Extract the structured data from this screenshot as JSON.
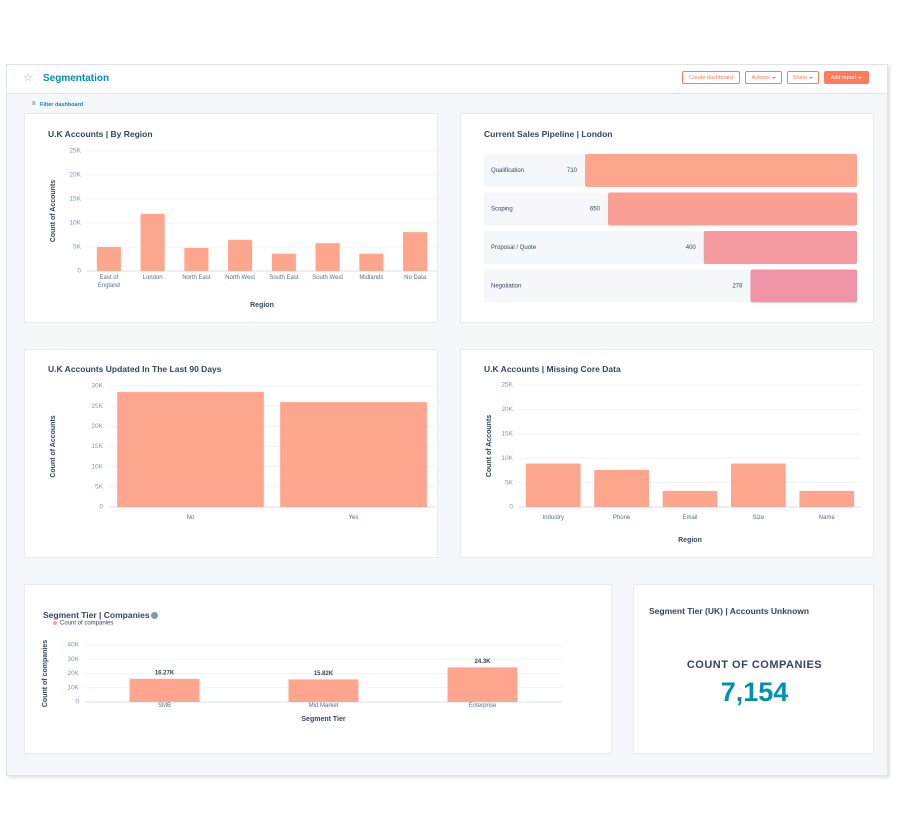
{
  "header": {
    "title": "Segmentation",
    "buttons": [
      "Create dashboard",
      "Actions",
      "Share",
      "Add report"
    ],
    "filter": "Filter dashboard"
  },
  "chart_data": [
    {
      "type": "bar",
      "title": "U.K Accounts | By Region",
      "categories": [
        "East of England",
        "London",
        "North East",
        "North West",
        "South East",
        "South West",
        "Midlands",
        "No Data"
      ],
      "values": [
        5000,
        11900,
        4800,
        6500,
        3600,
        5800,
        3600,
        8100
      ],
      "color": "#fea58e",
      "ylim": [
        0,
        25000
      ],
      "yticks": [
        0,
        {
          "value": 5000,
          "label": "5K"
        },
        {
          "value": 10000,
          "label": "10K"
        },
        {
          "value": 15000,
          "label": "15K"
        },
        {
          "value": 20000,
          "label": "20K"
        },
        {
          "value": 25000,
          "label": "25K"
        }
      ],
      "ylabel": "Count of Accounts",
      "xlabel": "Region",
      "grid": true
    },
    {
      "type": "funnel",
      "title": "Current Sales Pipeline | London",
      "categories": [
        "Qualification",
        "Scoping",
        "Proposal / Quote",
        "Negotiation"
      ],
      "values": [
        710,
        650,
        400,
        278
      ],
      "colors": [
        "#fea58e",
        "#fb9f95",
        "#f599a0",
        "#ef93a6"
      ]
    },
    {
      "type": "bar",
      "title": "U.K Accounts Updated In The Last 90 Days",
      "categories": [
        "No",
        "Yes"
      ],
      "values": [
        28500,
        26000
      ],
      "color": "#fea58e",
      "ylim": [
        0,
        30000
      ],
      "yticks": [
        0,
        {
          "value": 5000,
          "label": "5K"
        },
        {
          "value": 10000,
          "label": "10K"
        },
        {
          "value": 15000,
          "label": "15K"
        },
        {
          "value": 20000,
          "label": "20K"
        },
        {
          "value": 25000,
          "label": "25K"
        },
        {
          "value": 30000,
          "label": "30K"
        }
      ],
      "ylabel": "Count of Accounts",
      "grid": true
    },
    {
      "type": "bar",
      "title": "U.K Accounts | Missing Core Data",
      "categories": [
        "Industry",
        "Phone",
        "Email",
        "Size",
        "Name"
      ],
      "values": [
        8900,
        7600,
        3300,
        8900,
        3300
      ],
      "color": "#fea58e",
      "ylim": [
        0,
        25000
      ],
      "yticks": [
        0,
        {
          "value": 5000,
          "label": "5K"
        },
        {
          "value": 10000,
          "label": "10K"
        },
        {
          "value": 15000,
          "label": "15K"
        },
        {
          "value": 20000,
          "label": "20K"
        },
        {
          "value": 25000,
          "label": "25K"
        }
      ],
      "ylabel": "Count of Accounts",
      "xlabel": "Region",
      "grid": true
    },
    {
      "type": "bar",
      "title": "Segment Tier | Companies",
      "categories": [
        "SMB",
        "Mid Market",
        "Enterprise"
      ],
      "series": [
        {
          "name": "Count of companies",
          "color": "#fea58e",
          "values": [
            16270,
            15820,
            24300
          ],
          "value_labels": [
            "16.27K",
            "15.82K",
            "24.3K"
          ]
        }
      ],
      "ylim": [
        0,
        40000
      ],
      "yticks": [
        0,
        {
          "value": 10000,
          "label": "10K"
        },
        {
          "value": 20000,
          "label": "20K"
        },
        {
          "value": 30000,
          "label": "30K"
        },
        {
          "value": 40000,
          "label": "40K"
        }
      ],
      "ylabel": "Count of companies",
      "xlabel": "Segment Tier",
      "grid": true
    }
  ],
  "kpi": {
    "title": "Segment Tier (UK) | Accounts Unknown",
    "label": "COUNT OF COMPANIES",
    "value": "7,154"
  }
}
